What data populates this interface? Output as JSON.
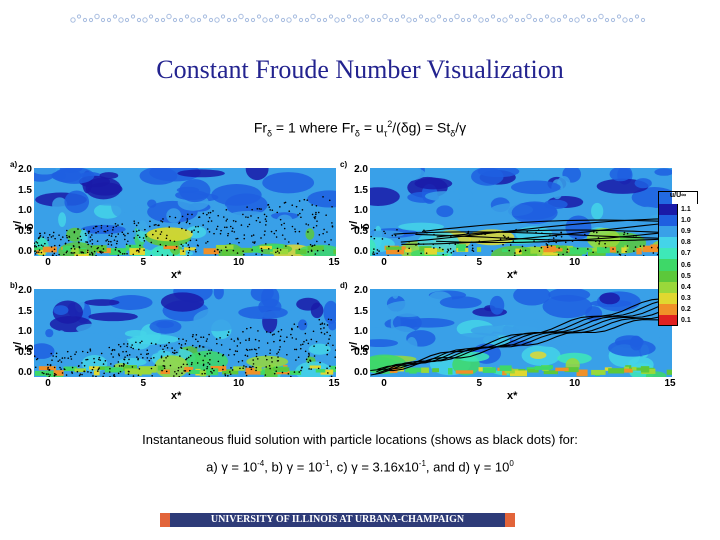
{
  "title": "Constant Froude Number Visualization",
  "formula": {
    "p1": "Fr",
    "s1": "δ",
    "p2": " = 1 where Fr",
    "s2": "δ",
    "p3": " = u",
    "s3": "τ",
    "sup3": "2",
    "p4": "/(",
    "g1": "δ",
    "p5": "g) = St",
    "s4": "δ",
    "p6": "/",
    "g2": "γ"
  },
  "panels": [
    {
      "label": "a)",
      "particle_style": "dots"
    },
    {
      "label": "b)",
      "particle_style": "dots"
    },
    {
      "label": "c)",
      "particle_style": "mixed"
    },
    {
      "label": "d)",
      "particle_style": "lines"
    }
  ],
  "axes": {
    "x_label": "x*",
    "y_label": "y/δ",
    "y_ticks": [
      "2.0",
      "1.5",
      "1.0",
      "0.5",
      "0.0"
    ],
    "x_ticks": [
      "0",
      "5",
      "10",
      "15"
    ]
  },
  "legend": {
    "header": "u/U∞",
    "levels": [
      {
        "label": "1.1",
        "color": "#1a1aa8"
      },
      {
        "label": "1.0",
        "color": "#1f5fe0"
      },
      {
        "label": "0.9",
        "color": "#39a0e8"
      },
      {
        "label": "0.8",
        "color": "#44d4e8"
      },
      {
        "label": "0.7",
        "color": "#3ee8b8"
      },
      {
        "label": "0.6",
        "color": "#3ed868"
      },
      {
        "label": "0.5",
        "color": "#5cc83a"
      },
      {
        "label": "0.4",
        "color": "#9ad83a"
      },
      {
        "label": "0.3",
        "color": "#e0d830"
      },
      {
        "label": "0.2",
        "color": "#f09028"
      },
      {
        "label": "0.1",
        "color": "#e02020"
      }
    ]
  },
  "caption": {
    "line1": "Instantaneous fluid solution with particle locations (shows as black dots) for:",
    "a": "a) ",
    "g1": "γ",
    "a2": " = 10",
    "a2e": "-4",
    "b": ", b) ",
    "g2": "γ",
    "b2": " = 10",
    "b2e": "-1",
    "c": ", c) ",
    "g3": "γ",
    "c2": " = 3.16x10",
    "c2e": "-1",
    "d": ", and d) ",
    "g4": "γ",
    "d2": " = 10",
    "d2e": "0"
  },
  "footer": "UNIVERSITY OF ILLINOIS AT URBANA-CHAMPAIGN"
}
